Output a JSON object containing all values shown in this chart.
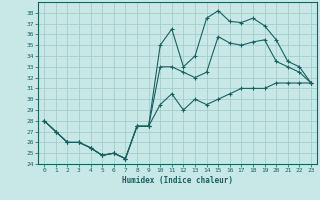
{
  "title": "",
  "xlabel": "Humidex (Indice chaleur)",
  "bg_color": "#c8e8e8",
  "grid_color": "#9ec8c8",
  "line_color": "#1a6060",
  "xlim": [
    -0.5,
    23.5
  ],
  "ylim": [
    24,
    39
  ],
  "xticks": [
    0,
    1,
    2,
    3,
    4,
    5,
    6,
    7,
    8,
    9,
    10,
    11,
    12,
    13,
    14,
    15,
    16,
    17,
    18,
    19,
    20,
    21,
    22,
    23
  ],
  "yticks": [
    24,
    25,
    26,
    27,
    28,
    29,
    30,
    31,
    32,
    33,
    34,
    35,
    36,
    37,
    38
  ],
  "line1_x": [
    0,
    1,
    2,
    3,
    4,
    5,
    6,
    7,
    8,
    9,
    10,
    11,
    12,
    13,
    14,
    15,
    16,
    17,
    18,
    19,
    20,
    21,
    22,
    23
  ],
  "line1_y": [
    28,
    27,
    26,
    26,
    25.5,
    24.8,
    25,
    24.5,
    27.5,
    27.5,
    29.5,
    30.5,
    29,
    30,
    29.5,
    30,
    30.5,
    31,
    31,
    31,
    31.5,
    31.5,
    31.5,
    31.5
  ],
  "line2_x": [
    0,
    1,
    2,
    3,
    4,
    5,
    6,
    7,
    8,
    9,
    10,
    11,
    12,
    13,
    14,
    15,
    16,
    17,
    18,
    19,
    20,
    21,
    22,
    23
  ],
  "line2_y": [
    28,
    27,
    26,
    26,
    25.5,
    24.8,
    25,
    24.5,
    27.5,
    27.5,
    35,
    36.5,
    33,
    34,
    37.5,
    38.2,
    37.2,
    37.1,
    37.5,
    36.8,
    35.5,
    33.5,
    33,
    31.5
  ],
  "line3_x": [
    0,
    1,
    2,
    3,
    4,
    5,
    6,
    7,
    8,
    9,
    10,
    11,
    12,
    13,
    14,
    15,
    16,
    17,
    18,
    19,
    20,
    21,
    22,
    23
  ],
  "line3_y": [
    28,
    27,
    26,
    26,
    25.5,
    24.8,
    25,
    24.5,
    27.5,
    27.5,
    33,
    33,
    32.5,
    32,
    32.5,
    35.8,
    35.2,
    35.0,
    35.3,
    35.5,
    33.5,
    33,
    32.5,
    31.5
  ]
}
